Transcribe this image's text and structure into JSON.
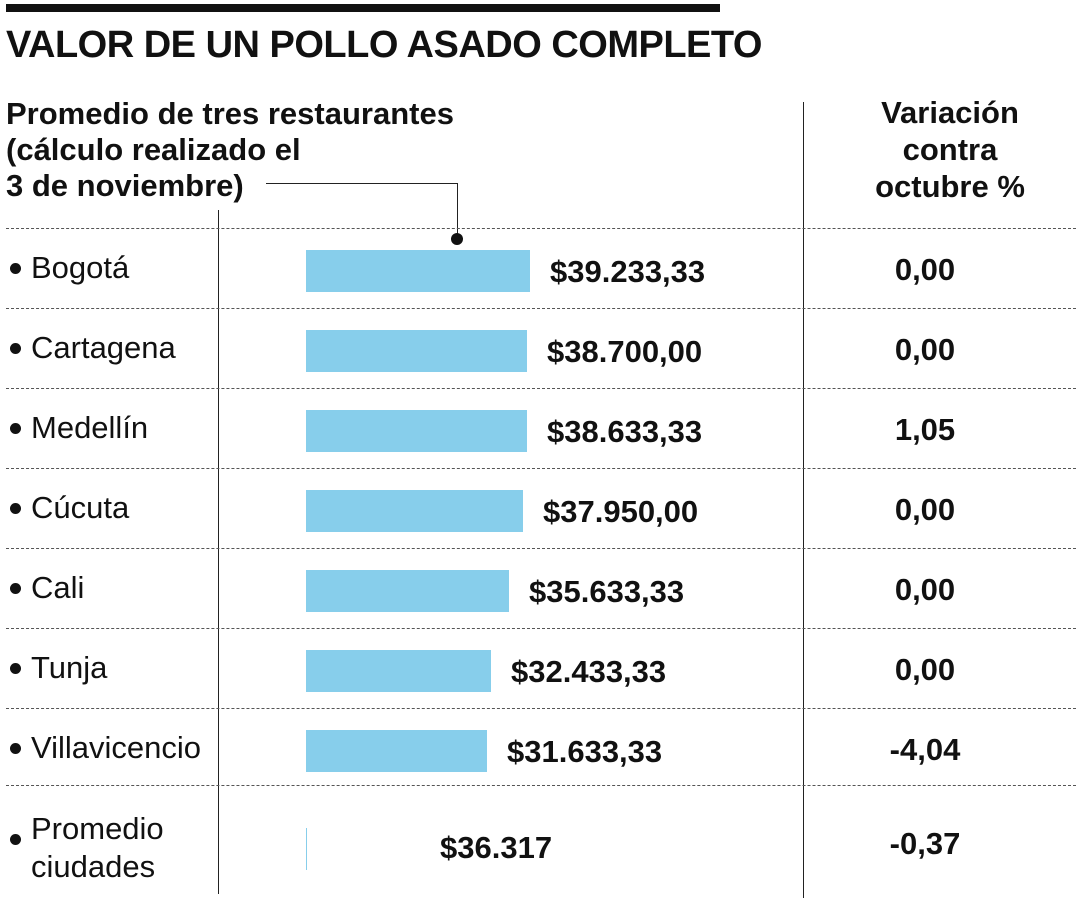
{
  "title": "VALOR DE UN POLLO ASADO COMPLETO",
  "subtitle_lines": [
    "Promedio de tres  restaurantes",
    "(cálculo realizado el",
    "3 de noviembre)"
  ],
  "variation_header_lines": [
    "Variación",
    "contra",
    "octubre %"
  ],
  "average": {
    "label_lines": [
      "Promedio",
      "ciudades"
    ],
    "value": 36317,
    "value_label": "$36.317",
    "variation": "-0,37"
  },
  "chart_data": {
    "type": "bar",
    "orientation": "horizontal",
    "title": "VALOR DE UN POLLO ASADO COMPLETO",
    "subtitle": "Promedio de tres  restaurantes (cálculo realizado el 3 de noviembre)",
    "categories": [
      "Bogotá",
      "Cartagena",
      "Medellín",
      "Cúcuta",
      "Cali",
      "Tunja",
      "Villavicencio"
    ],
    "values": [
      39233.33,
      38700.0,
      38633.33,
      37950.0,
      35633.33,
      32433.33,
      31633.33
    ],
    "value_labels": [
      "$39.233,33",
      "$38.700,00",
      "$38.633,33",
      "$37.950,00",
      "$35.633,33",
      "$32.433,33",
      "$31.633,33"
    ],
    "variation_header": "Variación contra octubre %",
    "variation": [
      "0,00",
      "0,00",
      "1,05",
      "0,00",
      "0,00",
      "0,00",
      "-4,04"
    ],
    "bar_color": "#87ceeb",
    "grid": false
  }
}
